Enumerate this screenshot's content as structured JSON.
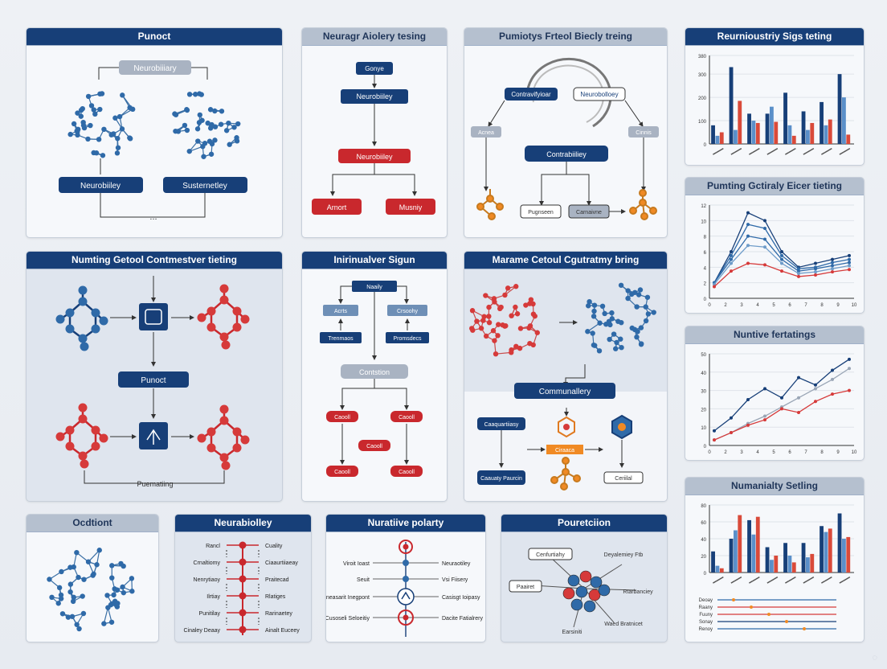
{
  "panels": {
    "p1": {
      "title": "Punoct",
      "tag": "Neurobiiiary",
      "left": "Neurobiiley",
      "right": "Susternetley",
      "ellipsis": "..."
    },
    "p2": {
      "title": "Neuragr Aiolery tesing",
      "top": "Gonye",
      "mid": "Neurobiiley",
      "red": "Neurobiiley",
      "a": "Arnort",
      "b": "Musniy"
    },
    "p3": {
      "title": "Pumiotys Frteol Biecly treing",
      "left": "Contravifyioar",
      "right": "Neurobolloey",
      "c1": "Acnea",
      "c2": "Cinnis",
      "center": "Contrabiiliey",
      "b1": "Pugnseen",
      "b2": "Carnaivne"
    },
    "p4": {
      "title": "Reurnioustriy Sigs teting"
    },
    "p5": {
      "title": "Numting Getool Contmestver tieting",
      "label": "Punoct",
      "bottom": "Puematiing"
    },
    "p6": {
      "title": "Inirinualver Sigun",
      "top": "Naaily",
      "l": "Acrts",
      "r": "Crsoohy",
      "l2": "Trenmaos",
      "r2": "Promsdecs",
      "mid": "Contstion",
      "red1": "Caooll",
      "red2": "Caooll",
      "red3": "Caooll",
      "red4": "Caooll",
      "red5": "Caooll"
    },
    "p7": {
      "title": "Marame Cetoul Cgutratmy bring",
      "label": "Communallery",
      "left": "Caaquartiiasy",
      "bottom": "Caauaty Paurcin",
      "center": "Ciraaca",
      "right": "Ceriilal"
    },
    "p8": {
      "title": "Pumting Gctiraly Eicer tieting"
    },
    "p9": {
      "title": "Nuntive fertatings"
    },
    "p10": {
      "title": "Ocdtiont"
    },
    "p11": {
      "title": "Neurabiolley",
      "left_items": [
        "Rancl",
        "Crnaltiomy",
        "Nenrytiaoy",
        "Ilrtiay",
        "Punitilay",
        "Cinaley Deaay"
      ],
      "right_items": [
        "Cuality",
        "Ciaaurtiiaeay",
        "Praitecad",
        "Rlatiges",
        "Rarinaetey",
        "Ainalt Euceey"
      ]
    },
    "p12": {
      "title": "Nuratiive polarty",
      "left_items": [
        "Viroit Ioast",
        "Seuit",
        "Cneasarit Inegpont",
        "Cusoseli Seloeitiy"
      ],
      "right_items": [
        "Neuraotiley",
        "Vsi Fiisery",
        "Casisgt Ioipasy",
        "Dacite Fatialrery"
      ]
    },
    "p13": {
      "title": "Pouretciion",
      "tl": "Cenfurtiahy",
      "tr": "Deyalemiey Ftb",
      "l": "Paairet",
      "r": "Rtarbanciey",
      "b": "Earsiniti",
      "br": "Waed Bratnicet"
    },
    "p14": {
      "title": "Numanialty Setling",
      "legend": [
        "Deoay",
        "Raany",
        "Fuuny",
        "Sonay",
        "Renoy"
      ]
    }
  },
  "colors": {
    "navy": "#173f78",
    "blue": "#2f6aa8",
    "lightblue": "#6e9cc9",
    "red": "#d63a3a",
    "orange": "#f08a24",
    "grey": "#8a97aa"
  },
  "chart_data": [
    {
      "type": "bar",
      "title": "Reurnioustriy Sigs teting",
      "yticks": [
        0,
        100,
        200,
        300,
        380
      ],
      "categories": [
        "1",
        "2",
        "3",
        "4",
        "5",
        "6",
        "7",
        "8"
      ],
      "series": [
        {
          "values": [
            80,
            330,
            130,
            130,
            220,
            140,
            180,
            300
          ],
          "color": "#173f78"
        },
        {
          "values": [
            35,
            60,
            100,
            160,
            80,
            60,
            80,
            200
          ],
          "color": "#5a8fc9"
        },
        {
          "values": [
            50,
            185,
            90,
            95,
            35,
            90,
            105,
            40
          ],
          "color": "#d94a3a"
        }
      ]
    },
    {
      "type": "line",
      "title": "Pumting Gctiraly Eicer tieting",
      "xticks": [
        "0",
        "2",
        "3",
        "4",
        "5",
        "6",
        "7",
        "8",
        "9",
        "10"
      ],
      "yticks": [
        0,
        2,
        4,
        6,
        8,
        10,
        12
      ],
      "series": [
        {
          "values": [
            2,
            6,
            11,
            10,
            6,
            4,
            4.5,
            5,
            5.5
          ],
          "color": "#173f78"
        },
        {
          "values": [
            2,
            5.5,
            9.5,
            9,
            5.5,
            3.8,
            4,
            4.6,
            5
          ],
          "color": "#2f6aa8"
        },
        {
          "values": [
            2,
            5,
            8,
            7.6,
            5,
            3.5,
            3.8,
            4.2,
            4.6
          ],
          "color": "#2f6aa8"
        },
        {
          "values": [
            1.8,
            4.5,
            6.8,
            6.6,
            4.5,
            3.2,
            3.4,
            3.8,
            4.2
          ],
          "color": "#6e9cc9"
        },
        {
          "values": [
            1.5,
            3.5,
            4.5,
            4.3,
            3.5,
            2.8,
            3,
            3.4,
            3.7
          ],
          "color": "#d63a3a"
        }
      ]
    },
    {
      "type": "line",
      "title": "Nuntive fertatings",
      "xticks": [
        "0",
        "2",
        "3",
        "4",
        "5",
        "6",
        "7",
        "8",
        "9",
        "10"
      ],
      "yticks": [
        0,
        10,
        20,
        30,
        40,
        50
      ],
      "series": [
        {
          "values": [
            8,
            15,
            25,
            31,
            26,
            37,
            33,
            41,
            47
          ],
          "color": "#173f78"
        },
        {
          "values": [
            3,
            7,
            12,
            16,
            21,
            26,
            31,
            36,
            42
          ],
          "color": "#9aa6b6"
        },
        {
          "values": [
            3,
            7,
            11,
            14,
            20,
            18,
            24,
            28,
            30
          ],
          "color": "#d63a3a"
        }
      ]
    },
    {
      "type": "bar",
      "title": "Numanialty Setling",
      "yticks": [
        0,
        20,
        40,
        60,
        80
      ],
      "categories": [
        "1",
        "2",
        "3",
        "4",
        "5",
        "6",
        "7",
        "8"
      ],
      "series": [
        {
          "values": [
            25,
            40,
            62,
            30,
            35,
            35,
            55,
            70
          ],
          "color": "#173f78"
        },
        {
          "values": [
            8,
            50,
            45,
            15,
            20,
            18,
            48,
            40
          ],
          "color": "#5a8fc9"
        },
        {
          "values": [
            5,
            68,
            66,
            20,
            12,
            22,
            52,
            42
          ],
          "color": "#d94a3a"
        }
      ]
    }
  ]
}
